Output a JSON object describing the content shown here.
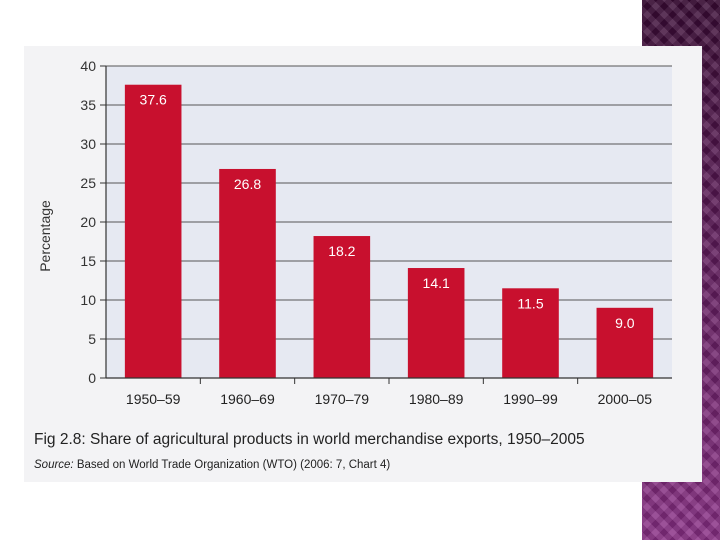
{
  "chart_data": {
    "type": "bar",
    "categories": [
      "1950–59",
      "1960–69",
      "1970–79",
      "1980–89",
      "1990–99",
      "2000–05"
    ],
    "values": [
      37.6,
      26.8,
      18.2,
      14.1,
      11.5,
      9.0
    ],
    "value_labels": [
      "37.6",
      "26.8",
      "18.2",
      "14.1",
      "11.5",
      "9.0"
    ],
    "title": "Fig 2.8: Share of agricultural products in world merchandise exports, 1950–2005",
    "source_prefix": "Source:",
    "source_text": " Based on World Trade Organization (WTO) (2006: 7, Chart 4)",
    "xlabel": "",
    "ylabel": "Percentage",
    "ylim": [
      0,
      40
    ],
    "yticks": [
      0,
      5,
      10,
      15,
      20,
      25,
      30,
      35,
      40
    ],
    "ytick_labels": [
      "0",
      "5",
      "10",
      "15",
      "20",
      "25",
      "30",
      "35",
      "40"
    ],
    "grid": true,
    "bar_color": "#c8102e",
    "plot_bg": "#e6e9f2"
  }
}
